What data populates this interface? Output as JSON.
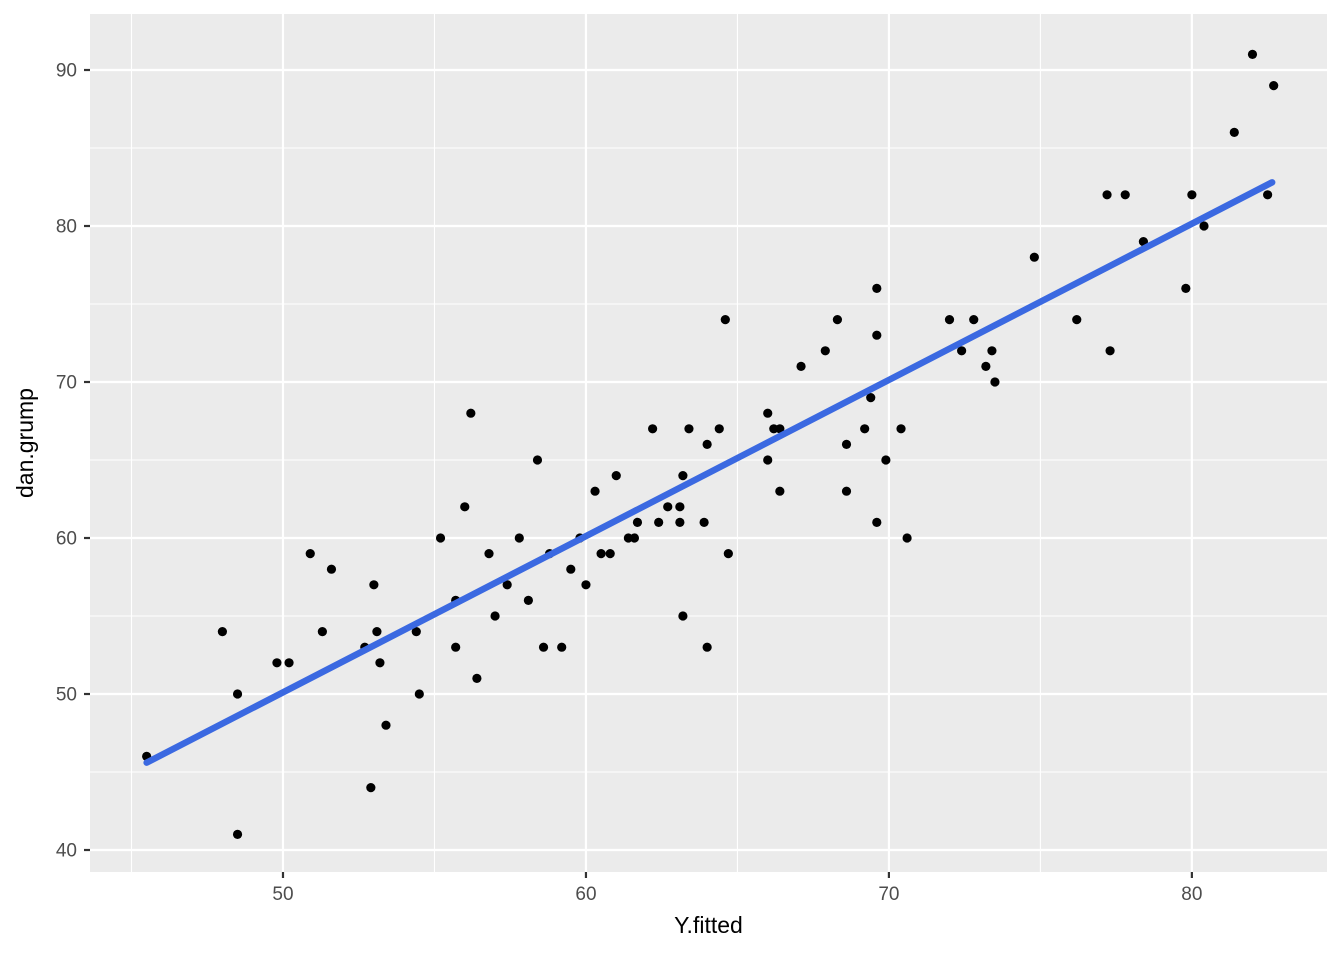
{
  "figure": {
    "kind": "ggplot-scatter-with-regression-line"
  },
  "chart_data": {
    "type": "scatter",
    "title": "",
    "xlabel": "Y.fitted",
    "ylabel": "dan.grump",
    "x_range": [
      43.63,
      84.46
    ],
    "y_range": [
      38.59,
      93.59
    ],
    "x_ticks": [
      50,
      60,
      70,
      80
    ],
    "y_ticks": [
      40,
      50,
      60,
      70,
      80,
      90
    ],
    "x_minor_ticks": [
      45,
      55,
      65,
      75
    ],
    "y_minor_ticks": [
      45,
      55,
      65,
      75,
      85
    ],
    "grid": "on",
    "legend_position": "none",
    "points": [
      [
        45.5,
        46
      ],
      [
        48.0,
        54
      ],
      [
        48.5,
        50
      ],
      [
        48.5,
        41
      ],
      [
        49.8,
        52
      ],
      [
        50.2,
        52
      ],
      [
        50.9,
        59
      ],
      [
        51.3,
        54
      ],
      [
        51.6,
        58
      ],
      [
        52.7,
        53
      ],
      [
        52.9,
        44
      ],
      [
        53.0,
        57
      ],
      [
        53.1,
        54
      ],
      [
        53.2,
        52
      ],
      [
        53.4,
        48
      ],
      [
        54.4,
        54
      ],
      [
        54.5,
        50
      ],
      [
        55.2,
        60
      ],
      [
        55.7,
        56
      ],
      [
        55.7,
        53
      ],
      [
        56.0,
        62
      ],
      [
        56.2,
        68
      ],
      [
        56.4,
        51
      ],
      [
        56.8,
        59
      ],
      [
        57.0,
        55
      ],
      [
        57.4,
        57
      ],
      [
        57.8,
        60
      ],
      [
        58.1,
        56
      ],
      [
        58.4,
        65
      ],
      [
        58.6,
        53
      ],
      [
        58.8,
        59
      ],
      [
        59.2,
        53
      ],
      [
        59.5,
        58
      ],
      [
        59.8,
        60
      ],
      [
        60.0,
        57
      ],
      [
        60.3,
        63
      ],
      [
        60.5,
        59
      ],
      [
        60.8,
        59
      ],
      [
        61.0,
        64
      ],
      [
        61.4,
        60
      ],
      [
        61.6,
        60
      ],
      [
        61.7,
        61
      ],
      [
        62.2,
        67
      ],
      [
        62.4,
        61
      ],
      [
        62.7,
        62
      ],
      [
        63.1,
        62
      ],
      [
        63.1,
        61
      ],
      [
        63.2,
        64
      ],
      [
        63.2,
        55
      ],
      [
        63.4,
        67
      ],
      [
        63.9,
        61
      ],
      [
        64.0,
        66
      ],
      [
        64.0,
        53
      ],
      [
        64.4,
        67
      ],
      [
        64.6,
        74
      ],
      [
        64.7,
        59
      ],
      [
        66.0,
        68
      ],
      [
        66.2,
        67
      ],
      [
        66.4,
        67
      ],
      [
        66.0,
        65
      ],
      [
        66.4,
        63
      ],
      [
        67.1,
        71
      ],
      [
        67.9,
        72
      ],
      [
        68.3,
        74
      ],
      [
        68.6,
        66
      ],
      [
        68.6,
        63
      ],
      [
        69.2,
        67
      ],
      [
        69.4,
        69
      ],
      [
        69.6,
        73
      ],
      [
        69.6,
        76
      ],
      [
        69.6,
        61
      ],
      [
        69.9,
        65
      ],
      [
        70.4,
        67
      ],
      [
        70.6,
        60
      ],
      [
        72.0,
        74
      ],
      [
        72.8,
        74
      ],
      [
        72.4,
        72
      ],
      [
        73.4,
        72
      ],
      [
        73.2,
        71
      ],
      [
        73.5,
        70
      ],
      [
        74.8,
        78
      ],
      [
        76.2,
        74
      ],
      [
        77.3,
        72
      ],
      [
        77.2,
        82
      ],
      [
        77.8,
        82
      ],
      [
        78.4,
        79
      ],
      [
        79.8,
        76
      ],
      [
        80.0,
        82
      ],
      [
        80.4,
        80
      ],
      [
        81.4,
        86
      ],
      [
        82.0,
        91
      ],
      [
        82.5,
        82
      ],
      [
        82.7,
        89
      ]
    ],
    "regression_line": {
      "x1": 45.5,
      "y1": 45.6,
      "x2": 82.65,
      "y2": 82.8
    },
    "colors": {
      "panel_background": "#EBEBEB",
      "grid": "#FFFFFF",
      "point": "#000000",
      "line": "#3B69E1",
      "tick_label": "#4D4D4D",
      "tick_mark": "#333333",
      "axis_title": "#000000"
    }
  }
}
